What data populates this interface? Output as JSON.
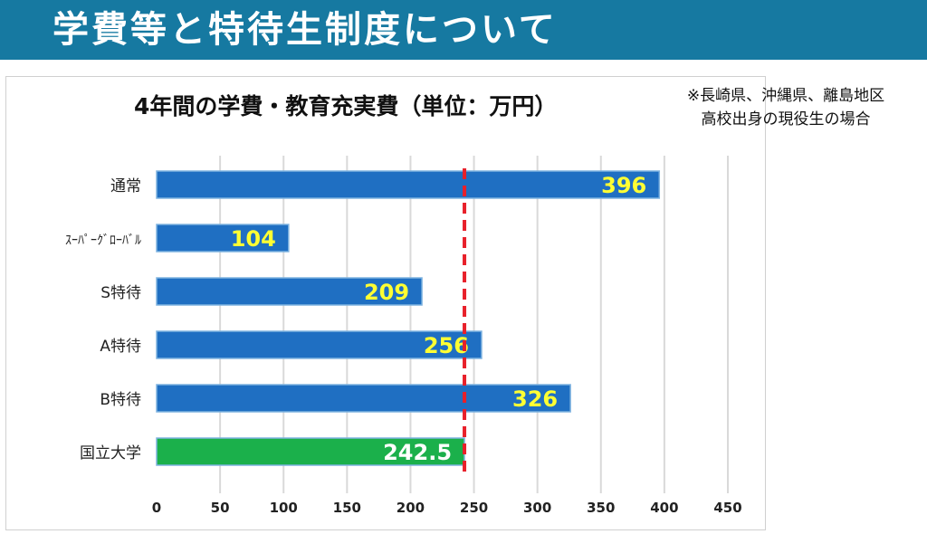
{
  "header": {
    "title": "学費等と特待生制度について"
  },
  "note": {
    "line1": "※長崎県、沖縄県、離島地区",
    "line2": "高校出身の現役生の場合"
  },
  "colors": {
    "header_bg": "#1679a1",
    "bar_blue": "#1f6fc2",
    "bar_green": "#1bb04b",
    "label_yellow": "#ffff33",
    "label_white": "#ffffff",
    "reference_line": "#e8202a",
    "grid": "#d9d9d9"
  },
  "chart_data": {
    "type": "bar",
    "orientation": "horizontal",
    "title": "4年間の学費・教育充実費（単位：万円）",
    "categories": [
      "通常",
      "ｽｰﾊﾟｰｸﾞﾛｰﾊﾞﾙ",
      "S特待",
      "A特待",
      "B特待",
      "国立大学"
    ],
    "values": [
      396,
      104,
      209,
      256,
      326,
      242.5
    ],
    "value_labels": [
      "396",
      "104",
      "209",
      "256",
      "326",
      "242.5"
    ],
    "bar_colors": [
      "#1f6fc2",
      "#1f6fc2",
      "#1f6fc2",
      "#1f6fc2",
      "#1f6fc2",
      "#1bb04b"
    ],
    "label_colors": [
      "#ffff33",
      "#ffff33",
      "#ffff33",
      "#ffff33",
      "#ffff33",
      "#ffffff"
    ],
    "xlim": [
      0,
      450
    ],
    "x_ticks": [
      0,
      50,
      100,
      150,
      200,
      250,
      300,
      350,
      400,
      450
    ],
    "reference_line": {
      "value": 242.5,
      "style": "dashed",
      "color": "#e8202a"
    },
    "grid": true,
    "xlabel": "",
    "ylabel": ""
  }
}
